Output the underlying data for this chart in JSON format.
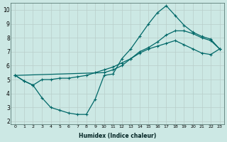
{
  "xlabel": "Humidex (Indice chaleur)",
  "bg_color": "#cce8e4",
  "line_color": "#006868",
  "grid_color": "#b8ceca",
  "xlim": [
    -0.5,
    23.5
  ],
  "ylim": [
    1.8,
    10.5
  ],
  "xticks": [
    0,
    1,
    2,
    3,
    4,
    5,
    6,
    7,
    8,
    9,
    10,
    11,
    12,
    13,
    14,
    15,
    16,
    17,
    18,
    19,
    20,
    21,
    22,
    23
  ],
  "yticks": [
    2,
    3,
    4,
    5,
    6,
    7,
    8,
    9,
    10
  ],
  "line1_x": [
    0,
    1,
    2,
    3,
    4,
    5,
    6,
    7,
    8,
    9,
    10,
    11,
    12,
    13,
    14,
    15,
    16,
    17,
    18,
    19,
    20,
    21,
    22,
    23
  ],
  "line1_y": [
    5.3,
    4.9,
    4.6,
    5.0,
    5.0,
    5.1,
    5.1,
    5.2,
    5.3,
    5.5,
    5.7,
    5.9,
    6.2,
    6.5,
    6.9,
    7.2,
    7.4,
    7.6,
    7.8,
    7.5,
    7.2,
    6.9,
    6.8,
    7.2
  ],
  "line2_x": [
    0,
    1,
    2,
    3,
    4,
    5,
    6,
    7,
    8,
    9,
    10,
    11,
    12,
    13,
    14,
    15,
    16,
    17,
    18,
    19,
    20,
    21,
    22,
    23
  ],
  "line2_y": [
    5.3,
    4.9,
    4.6,
    3.7,
    3.0,
    2.8,
    2.6,
    2.5,
    2.5,
    3.6,
    5.3,
    5.4,
    6.5,
    7.2,
    8.1,
    9.0,
    9.8,
    10.3,
    9.6,
    8.9,
    8.4,
    8.1,
    7.9,
    7.2
  ],
  "line3_x": [
    0,
    10,
    11,
    12,
    13,
    14,
    15,
    16,
    17,
    18,
    19,
    20,
    21,
    22,
    23
  ],
  "line3_y": [
    5.3,
    5.5,
    5.7,
    6.0,
    6.5,
    7.0,
    7.3,
    7.7,
    8.2,
    8.5,
    8.5,
    8.3,
    8.0,
    7.8,
    7.2
  ],
  "marker_size": 3.5,
  "linewidth": 0.9
}
